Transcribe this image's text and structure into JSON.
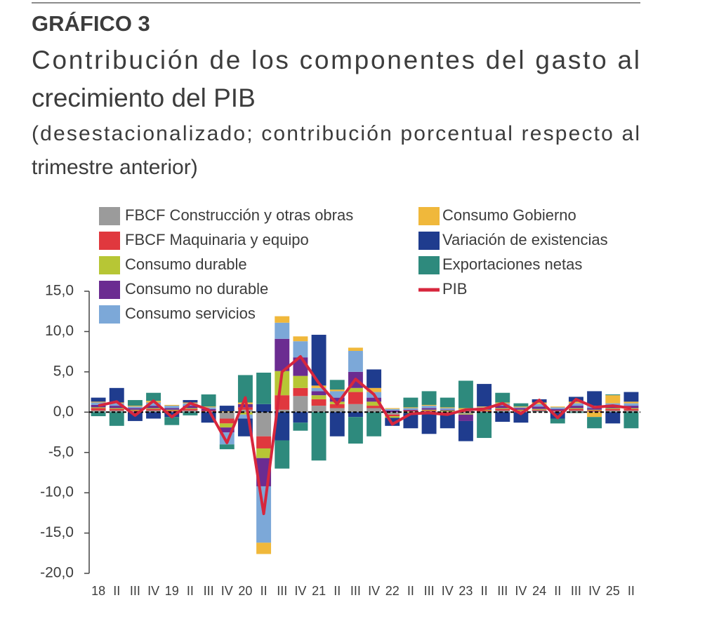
{
  "chart_data": {
    "type": "bar",
    "stacked": true,
    "header": "GRÁFICO 3",
    "title": [
      "Contribución de los componentes del gasto al",
      "crecimiento del PIB"
    ],
    "subtitle": [
      "(desestacionalizado; contribución porcentual respecto al",
      "trimestre anterior)"
    ],
    "categories": [
      "18",
      "II",
      "III",
      "IV",
      "19",
      "II",
      "III",
      "IV",
      "20",
      "II",
      "III",
      "IV",
      "21",
      "II",
      "III",
      "IV",
      "22",
      "II",
      "III",
      "IV",
      "23",
      "II",
      "III",
      "IV",
      "24",
      "II",
      "III",
      "IV",
      "25",
      "II"
    ],
    "ylim": [
      -20,
      15
    ],
    "yticks": [
      {
        "value": -20,
        "label": "-20,0"
      },
      {
        "value": -15,
        "label": "-15,0"
      },
      {
        "value": -10,
        "label": "-10,0"
      },
      {
        "value": -5,
        "label": "-5,0"
      },
      {
        "value": 0,
        "label": "0,0"
      },
      {
        "value": 5,
        "label": "5,0"
      },
      {
        "value": 10,
        "label": "10,0"
      },
      {
        "value": 15,
        "label": "15,0"
      }
    ],
    "series": [
      {
        "name": "FBCF  Construcción y otras obras",
        "color": "#9b9b9b",
        "values": [
          0.2,
          0.2,
          0.1,
          0.2,
          0.1,
          0.2,
          0.1,
          -0.8,
          0.3,
          -3.0,
          0.3,
          2.0,
          0.8,
          0.5,
          1.0,
          0.5,
          -0.3,
          0.1,
          0.1,
          0.1,
          -0.2,
          0.1,
          0.2,
          0.1,
          0.2,
          0.1,
          0.2,
          0.1,
          0.2,
          0.2
        ]
      },
      {
        "name": "FBCF Maquinaria y equipo",
        "color": "#e0383e",
        "values": [
          0.3,
          0.2,
          0.1,
          0.2,
          0.1,
          0.2,
          0.1,
          -0.6,
          0.3,
          -1.5,
          1.8,
          1.0,
          0.8,
          0.5,
          1.5,
          0.3,
          -0.2,
          0.1,
          0.1,
          -0.1,
          0.1,
          0.1,
          0.2,
          0.1,
          0.1,
          0.1,
          0.2,
          0.1,
          0.2,
          0.2
        ]
      },
      {
        "name": "Consumo durable",
        "color": "#b7c635",
        "values": [
          0.1,
          0.1,
          0.1,
          0.1,
          0.1,
          0.1,
          0.0,
          -0.5,
          -0.3,
          -1.2,
          3.0,
          1.5,
          0.5,
          0.3,
          0.5,
          0.5,
          -0.2,
          -0.1,
          0.1,
          0.1,
          -0.1,
          0.1,
          0.1,
          0.1,
          0.1,
          0.0,
          0.1,
          0.1,
          0.1,
          0.1
        ]
      },
      {
        "name": "Consumo no durable",
        "color": "#6b2c91",
        "values": [
          0.3,
          0.3,
          0.2,
          0.3,
          0.2,
          0.3,
          0.2,
          -0.6,
          0.4,
          -3.5,
          4.0,
          2.3,
          0.5,
          0.5,
          2.0,
          0.5,
          0.2,
          0.1,
          0.2,
          0.1,
          -0.8,
          0.2,
          0.3,
          0.2,
          0.3,
          0.2,
          0.3,
          0.2,
          0.3,
          0.3
        ]
      },
      {
        "name": "Consumo servicios",
        "color": "#7ca8d8",
        "values": [
          0.3,
          0.3,
          0.2,
          0.4,
          0.3,
          0.3,
          0.2,
          -1.5,
          -0.5,
          -7.0,
          2.0,
          2.0,
          0.4,
          0.8,
          2.6,
          0.7,
          0.2,
          0.2,
          0.3,
          0.2,
          0.2,
          0.1,
          0.3,
          0.1,
          0.3,
          0.2,
          0.3,
          0.3,
          0.3,
          0.3
        ]
      },
      {
        "name": "Consumo Gobierno",
        "color": "#f0b83b",
        "values": [
          0.1,
          0.1,
          0.1,
          0.2,
          0.1,
          0.1,
          0.1,
          0.1,
          0.2,
          -1.4,
          0.8,
          0.6,
          0.3,
          0.2,
          0.4,
          0.5,
          0.1,
          0.1,
          0.1,
          0.1,
          0.2,
          0.1,
          0.1,
          0.1,
          0.2,
          0.1,
          0.2,
          -0.6,
          1.0,
          0.2
        ]
      },
      {
        "name": "Variación de existencias",
        "color": "#1f3c8e",
        "values": [
          0.5,
          1.8,
          -1.1,
          -0.8,
          -0.6,
          0.3,
          -1.3,
          0.7,
          -2.2,
          1.0,
          -3.5,
          -1.3,
          6.3,
          -3.0,
          -0.6,
          2.3,
          -1.0,
          -1.9,
          -2.7,
          -1.9,
          -2.5,
          2.8,
          -1.2,
          -1.3,
          0.4,
          -0.8,
          0.6,
          1.8,
          -1.4,
          1.2
        ]
      },
      {
        "name": "Exportaciones netas",
        "color": "#2e8a7d",
        "values": [
          -0.5,
          -1.7,
          0.7,
          1.0,
          -1.0,
          -0.4,
          1.5,
          -0.6,
          3.4,
          3.9,
          -3.5,
          -1.0,
          -6.0,
          1.2,
          -3.3,
          -3.0,
          0.0,
          1.2,
          1.7,
          1.2,
          3.4,
          -3.2,
          1.2,
          0.4,
          0.0,
          -0.6,
          -0.1,
          -1.4,
          0.1,
          -2.0
        ]
      },
      {
        "name": "PIB",
        "type": "line",
        "color": "#d7263d",
        "values": [
          0.8,
          1.3,
          -0.4,
          1.4,
          -0.6,
          1.1,
          0.3,
          -3.8,
          1.8,
          -12.6,
          5.0,
          6.9,
          3.6,
          1.0,
          4.1,
          2.2,
          -1.5,
          -0.2,
          -0.1,
          -0.3,
          0.3,
          0.4,
          1.1,
          -0.2,
          1.5,
          -0.7,
          1.6,
          0.6,
          0.8,
          0.5
        ]
      }
    ]
  }
}
